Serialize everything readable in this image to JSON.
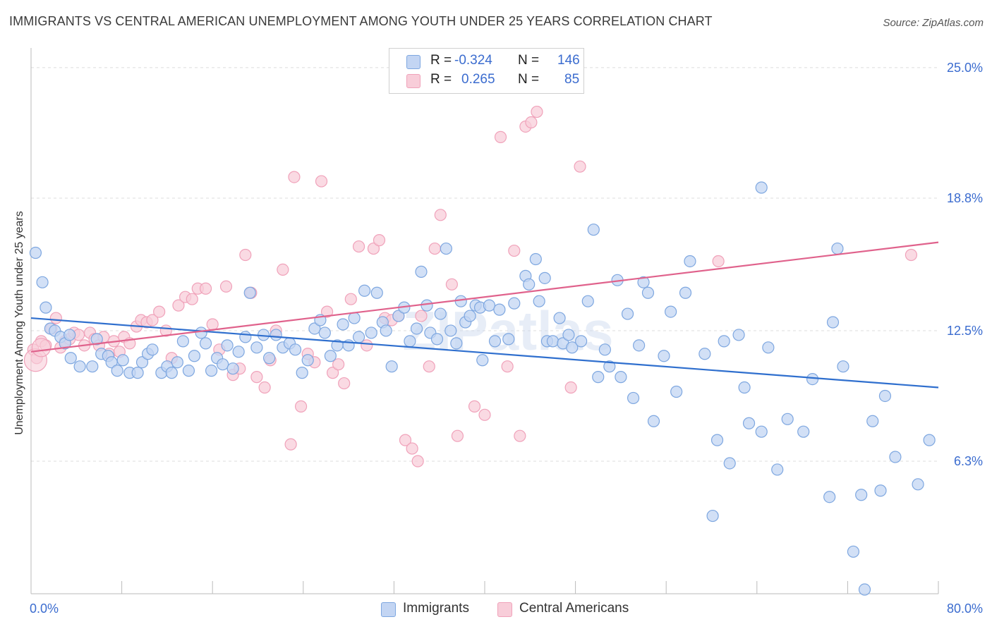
{
  "title": "IMMIGRANTS VS CENTRAL AMERICAN UNEMPLOYMENT AMONG YOUTH UNDER 25 YEARS CORRELATION CHART",
  "source": "Source: ZipAtlas.com",
  "watermark": "ZIPatlas",
  "legend": {
    "r_label": "R =",
    "n_label": "N =",
    "rows": [
      {
        "r": "-0.324",
        "n": "146"
      },
      {
        "r": "0.265",
        "n": "85"
      }
    ]
  },
  "chart_data": {
    "type": "scatter",
    "title": "IMMIGRANTS VS CENTRAL AMERICAN UNEMPLOYMENT AMONG YOUTH UNDER 25 YEARS CORRELATION CHART",
    "xlabel": "",
    "ylabel": "Unemployment Among Youth under 25 years",
    "xlim": [
      0,
      80
    ],
    "ylim": [
      0,
      25.6
    ],
    "x_tick_labels": [
      "0.0%",
      "80.0%"
    ],
    "y_ticks": [
      6.3,
      12.5,
      18.8,
      25.0
    ],
    "y_tick_labels": [
      "6.3%",
      "12.5%",
      "18.8%",
      "25.0%"
    ],
    "grid": "horizontal dashed",
    "legend_position": "top-center",
    "colors": {
      "Immigrants": "#7ea7e0",
      "Central Americans": "#f0a2ba",
      "immigrants_line": "#2f6fce",
      "central_line": "#e0628c",
      "tick_text": "#3b6ccf"
    },
    "series": [
      {
        "name": "Immigrants",
        "r": -0.324,
        "n": 146,
        "trend": {
          "x": [
            0,
            80
          ],
          "y": [
            13.1,
            9.8
          ]
        },
        "points": [
          [
            0.4,
            16.2
          ],
          [
            1.0,
            14.8
          ],
          [
            1.3,
            13.6
          ],
          [
            1.7,
            12.6
          ],
          [
            2.1,
            12.5
          ],
          [
            2.6,
            12.2
          ],
          [
            3.0,
            11.9
          ],
          [
            3.5,
            11.2
          ],
          [
            4.3,
            10.8
          ],
          [
            5.4,
            10.8
          ],
          [
            5.8,
            12.1
          ],
          [
            6.2,
            11.4
          ],
          [
            6.8,
            11.3
          ],
          [
            7.1,
            11.0
          ],
          [
            7.6,
            10.6
          ],
          [
            8.1,
            11.1
          ],
          [
            8.7,
            10.5
          ],
          [
            9.4,
            10.5
          ],
          [
            9.8,
            11.0
          ],
          [
            10.3,
            11.4
          ],
          [
            10.7,
            11.6
          ],
          [
            11.5,
            10.5
          ],
          [
            12.0,
            10.8
          ],
          [
            12.4,
            10.5
          ],
          [
            12.9,
            11.0
          ],
          [
            13.4,
            12.0
          ],
          [
            13.9,
            10.6
          ],
          [
            14.4,
            11.3
          ],
          [
            15.0,
            12.4
          ],
          [
            15.4,
            11.9
          ],
          [
            15.9,
            10.6
          ],
          [
            16.4,
            11.2
          ],
          [
            16.9,
            10.9
          ],
          [
            17.3,
            11.8
          ],
          [
            17.8,
            10.7
          ],
          [
            18.3,
            11.5
          ],
          [
            18.9,
            12.2
          ],
          [
            19.3,
            14.3
          ],
          [
            19.9,
            11.7
          ],
          [
            20.5,
            12.3
          ],
          [
            21.0,
            11.2
          ],
          [
            21.6,
            12.3
          ],
          [
            22.2,
            11.7
          ],
          [
            22.8,
            11.9
          ],
          [
            23.3,
            11.6
          ],
          [
            23.9,
            10.5
          ],
          [
            24.4,
            11.1
          ],
          [
            25.0,
            12.6
          ],
          [
            25.5,
            13.0
          ],
          [
            25.9,
            12.4
          ],
          [
            26.4,
            11.3
          ],
          [
            27.0,
            11.8
          ],
          [
            27.5,
            12.8
          ],
          [
            28.0,
            11.8
          ],
          [
            28.5,
            13.1
          ],
          [
            28.9,
            12.2
          ],
          [
            29.4,
            14.4
          ],
          [
            30.0,
            12.4
          ],
          [
            30.5,
            14.3
          ],
          [
            31.0,
            12.9
          ],
          [
            31.3,
            12.5
          ],
          [
            31.8,
            10.8
          ],
          [
            32.4,
            13.2
          ],
          [
            32.9,
            13.6
          ],
          [
            33.4,
            12.0
          ],
          [
            34.0,
            12.6
          ],
          [
            34.4,
            15.3
          ],
          [
            34.9,
            13.7
          ],
          [
            35.2,
            12.4
          ],
          [
            35.8,
            12.1
          ],
          [
            36.1,
            13.3
          ],
          [
            36.6,
            16.4
          ],
          [
            37.0,
            12.5
          ],
          [
            37.5,
            11.9
          ],
          [
            37.9,
            13.9
          ],
          [
            38.3,
            12.9
          ],
          [
            38.7,
            13.2
          ],
          [
            39.2,
            13.7
          ],
          [
            39.6,
            13.6
          ],
          [
            39.8,
            11.1
          ],
          [
            40.4,
            13.7
          ],
          [
            40.9,
            12.0
          ],
          [
            41.3,
            13.5
          ],
          [
            42.1,
            12.1
          ],
          [
            42.6,
            13.8
          ],
          [
            43.6,
            15.1
          ],
          [
            43.9,
            14.7
          ],
          [
            44.5,
            15.9
          ],
          [
            44.8,
            13.9
          ],
          [
            45.3,
            15.0
          ],
          [
            45.5,
            12.0
          ],
          [
            46.0,
            12.0
          ],
          [
            46.6,
            13.1
          ],
          [
            46.9,
            11.9
          ],
          [
            47.4,
            12.3
          ],
          [
            47.7,
            11.7
          ],
          [
            48.5,
            12.0
          ],
          [
            49.1,
            13.9
          ],
          [
            49.6,
            17.3
          ],
          [
            50.0,
            10.3
          ],
          [
            50.6,
            11.6
          ],
          [
            51.0,
            10.8
          ],
          [
            51.7,
            14.9
          ],
          [
            52.0,
            10.3
          ],
          [
            52.6,
            13.3
          ],
          [
            53.1,
            9.3
          ],
          [
            53.6,
            11.8
          ],
          [
            54.0,
            14.8
          ],
          [
            54.4,
            14.3
          ],
          [
            54.9,
            8.2
          ],
          [
            55.8,
            11.3
          ],
          [
            56.4,
            13.4
          ],
          [
            56.9,
            9.6
          ],
          [
            57.7,
            14.3
          ],
          [
            58.1,
            15.8
          ],
          [
            59.4,
            11.4
          ],
          [
            60.1,
            3.7
          ],
          [
            60.5,
            7.3
          ],
          [
            61.1,
            12.0
          ],
          [
            61.6,
            6.2
          ],
          [
            62.4,
            12.3
          ],
          [
            62.9,
            9.8
          ],
          [
            63.3,
            8.1
          ],
          [
            64.4,
            7.7
          ],
          [
            64.4,
            19.3
          ],
          [
            65.0,
            11.7
          ],
          [
            65.8,
            5.9
          ],
          [
            66.7,
            8.3
          ],
          [
            68.1,
            7.7
          ],
          [
            68.9,
            10.2
          ],
          [
            70.4,
            4.6
          ],
          [
            70.7,
            12.9
          ],
          [
            71.1,
            16.4
          ],
          [
            71.6,
            10.8
          ],
          [
            72.5,
            2.0
          ],
          [
            73.2,
            4.7
          ],
          [
            73.5,
            0.2
          ],
          [
            74.2,
            8.2
          ],
          [
            74.9,
            4.9
          ],
          [
            75.3,
            9.4
          ],
          [
            76.2,
            6.5
          ],
          [
            78.2,
            5.2
          ],
          [
            79.2,
            7.3
          ],
          [
            3.4,
            12.3
          ]
        ]
      },
      {
        "name": "Central Americans",
        "r": 0.265,
        "n": 85,
        "trend": {
          "x": [
            0,
            80
          ],
          "y": [
            11.5,
            16.7
          ]
        },
        "points": [
          [
            0.2,
            11.6
          ],
          [
            0.5,
            11.2
          ],
          [
            0.9,
            12.0
          ],
          [
            1.3,
            11.8
          ],
          [
            1.8,
            12.6
          ],
          [
            2.2,
            13.1
          ],
          [
            2.6,
            11.7
          ],
          [
            3.0,
            12.0
          ],
          [
            3.4,
            12.1
          ],
          [
            3.8,
            12.4
          ],
          [
            4.2,
            12.3
          ],
          [
            4.7,
            11.8
          ],
          [
            5.2,
            12.4
          ],
          [
            5.6,
            12.1
          ],
          [
            6.0,
            11.8
          ],
          [
            6.4,
            12.2
          ],
          [
            6.9,
            11.4
          ],
          [
            7.3,
            12.0
          ],
          [
            7.8,
            11.5
          ],
          [
            8.2,
            12.2
          ],
          [
            8.7,
            11.9
          ],
          [
            9.3,
            12.7
          ],
          [
            9.7,
            13.0
          ],
          [
            10.2,
            12.9
          ],
          [
            10.7,
            13.0
          ],
          [
            11.3,
            13.4
          ],
          [
            11.9,
            12.5
          ],
          [
            12.4,
            11.2
          ],
          [
            13.0,
            13.7
          ],
          [
            13.6,
            14.1
          ],
          [
            14.2,
            14.0
          ],
          [
            14.7,
            14.5
          ],
          [
            15.4,
            14.5
          ],
          [
            16.0,
            12.8
          ],
          [
            16.6,
            11.6
          ],
          [
            17.2,
            14.6
          ],
          [
            17.8,
            10.4
          ],
          [
            18.4,
            10.7
          ],
          [
            18.9,
            16.1
          ],
          [
            19.4,
            14.3
          ],
          [
            19.9,
            10.3
          ],
          [
            20.6,
            9.8
          ],
          [
            21.1,
            11.1
          ],
          [
            21.6,
            12.5
          ],
          [
            22.2,
            15.4
          ],
          [
            22.9,
            7.1
          ],
          [
            23.2,
            19.8
          ],
          [
            23.8,
            8.9
          ],
          [
            24.4,
            11.4
          ],
          [
            25.0,
            11.0
          ],
          [
            25.6,
            19.6
          ],
          [
            26.1,
            13.4
          ],
          [
            26.6,
            10.5
          ],
          [
            27.1,
            10.9
          ],
          [
            27.6,
            10.0
          ],
          [
            28.2,
            14.0
          ],
          [
            28.9,
            16.5
          ],
          [
            29.6,
            11.8
          ],
          [
            30.2,
            16.4
          ],
          [
            30.7,
            16.8
          ],
          [
            31.2,
            13.1
          ],
          [
            31.8,
            13.0
          ],
          [
            32.4,
            13.2
          ],
          [
            33.0,
            7.3
          ],
          [
            33.6,
            6.9
          ],
          [
            34.1,
            6.3
          ],
          [
            34.4,
            13.2
          ],
          [
            35.1,
            10.8
          ],
          [
            35.6,
            16.4
          ],
          [
            36.1,
            18.0
          ],
          [
            37.1,
            14.7
          ],
          [
            37.6,
            7.5
          ],
          [
            39.1,
            8.9
          ],
          [
            40.0,
            8.5
          ],
          [
            41.4,
            21.7
          ],
          [
            42.0,
            10.8
          ],
          [
            42.6,
            16.3
          ],
          [
            43.1,
            7.5
          ],
          [
            43.6,
            22.2
          ],
          [
            44.1,
            22.4
          ],
          [
            44.6,
            22.9
          ],
          [
            47.6,
            9.8
          ],
          [
            48.4,
            20.3
          ],
          [
            60.6,
            15.8
          ],
          [
            77.6,
            16.1
          ]
        ]
      }
    ]
  },
  "bottom_legend": {
    "immigrants": "Immigrants",
    "central_americans": "Central Americans"
  }
}
